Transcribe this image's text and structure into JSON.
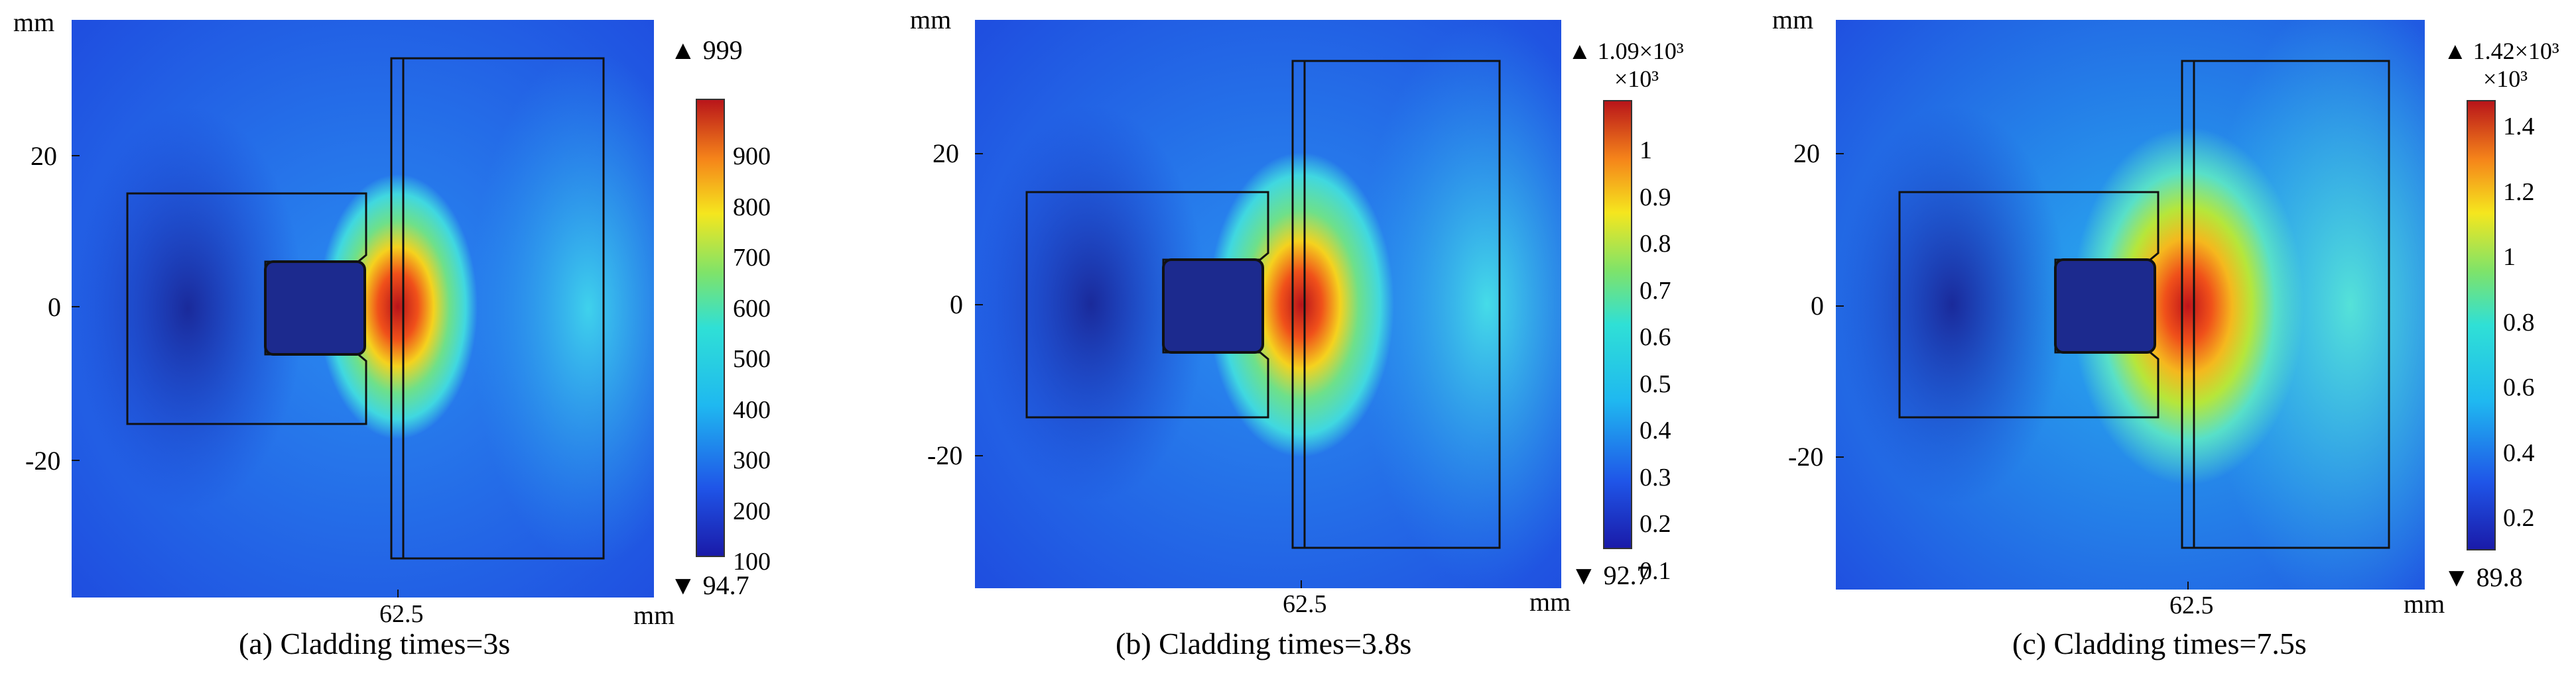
{
  "chart_data": [
    {
      "type": "heatmap",
      "caption": "(a) Cladding times=3s",
      "x_unit": "mm",
      "y_unit": "mm",
      "x_ticks": [
        "62.5"
      ],
      "y_ticks": [
        "20",
        "0",
        "-20"
      ],
      "colorbar": {
        "max_marker": "▲ 999",
        "min_marker": "▼ 94.7",
        "multiplier": "",
        "ticks": [
          "900",
          "800",
          "700",
          "600",
          "500",
          "400",
          "300",
          "200",
          "100"
        ],
        "range": [
          100,
          999
        ]
      },
      "hot_spot": {
        "x": 62.5,
        "y": 0,
        "spread": 0.55
      }
    },
    {
      "type": "heatmap",
      "caption": "(b) Cladding times=3.8s",
      "x_unit": "mm",
      "y_unit": "mm",
      "x_ticks": [
        "62.5"
      ],
      "y_ticks": [
        "20",
        "0",
        "-20"
      ],
      "colorbar": {
        "max_marker": "▲ 1.09×10³",
        "min_marker": "▼ 92.7",
        "multiplier": "×10³",
        "ticks": [
          "1",
          "0.9",
          "0.8",
          "0.7",
          "0.6",
          "0.5",
          "0.4",
          "0.3",
          "0.2",
          "0.1"
        ],
        "range": [
          0.1,
          1.09
        ]
      },
      "hot_spot": {
        "x": 62.5,
        "y": 0,
        "spread": 0.7
      }
    },
    {
      "type": "heatmap",
      "caption": "(c) Cladding times=7.5s",
      "x_unit": "mm",
      "y_unit": "mm",
      "x_ticks": [
        "62.5"
      ],
      "y_ticks": [
        "20",
        "0",
        "-20"
      ],
      "colorbar": {
        "max_marker": "▲ 1.42×10³",
        "min_marker": "▼ 89.8",
        "multiplier": "×10³",
        "ticks": [
          "1.4",
          "1.2",
          "1",
          "0.8",
          "0.6",
          "0.4",
          "0.2"
        ],
        "range": [
          0.1,
          1.42
        ]
      },
      "hot_spot": {
        "x": 62.5,
        "y": 0,
        "spread": 1.0
      }
    }
  ]
}
